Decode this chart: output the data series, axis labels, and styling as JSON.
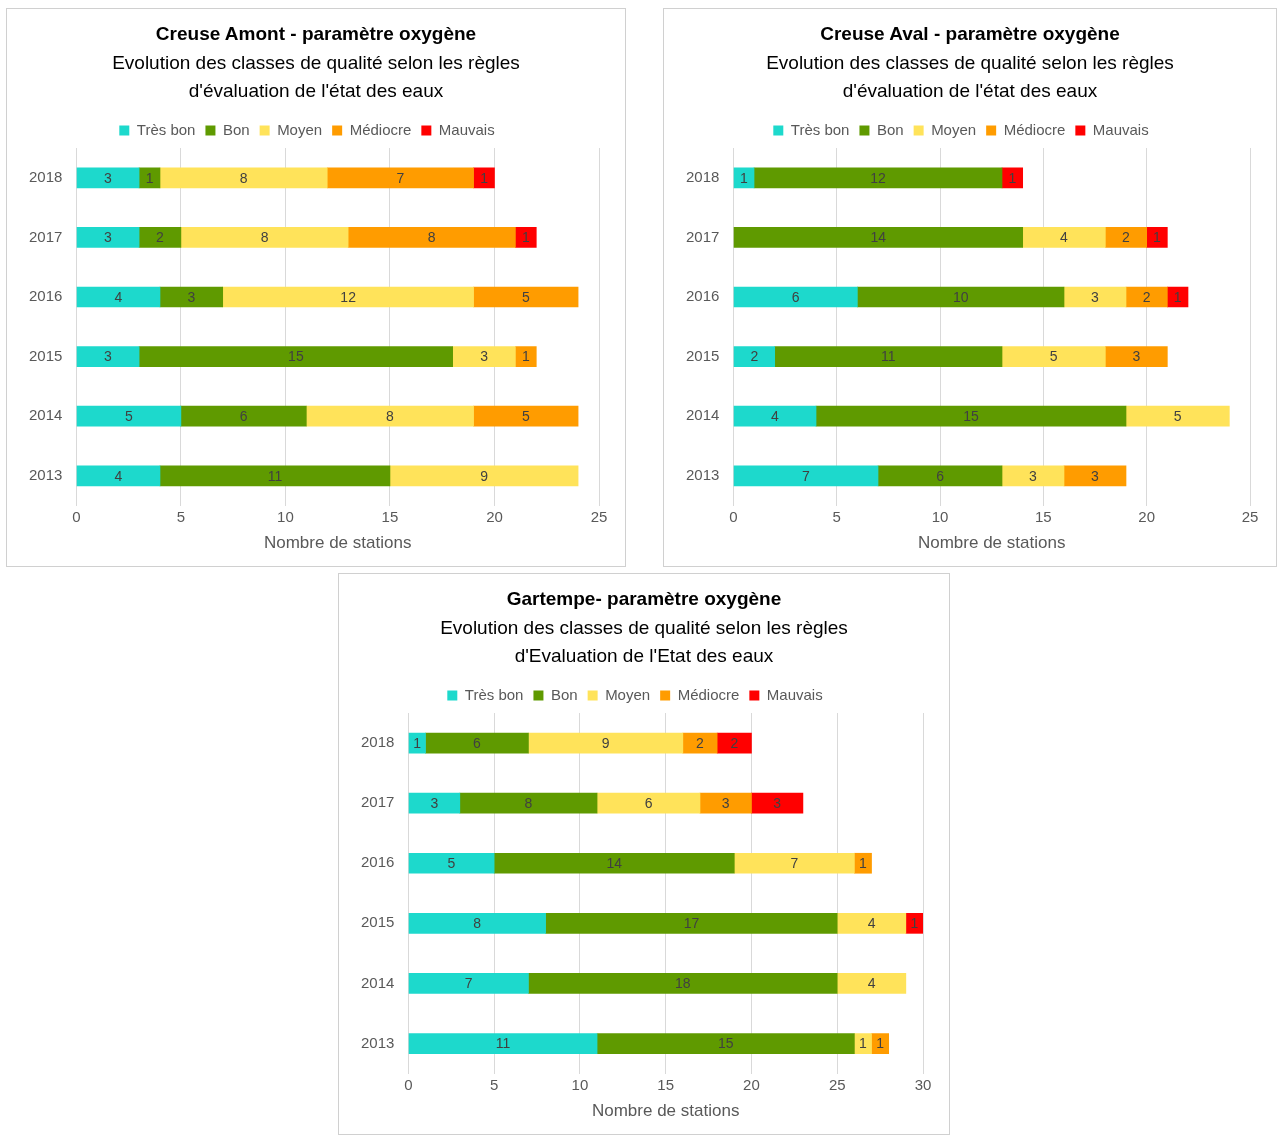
{
  "chart_data": [
    {
      "type": "bar",
      "orientation": "horizontal",
      "stacked": true,
      "title": "Creuse Amont - paramètre oxygène",
      "subtitle": "Evolution des classes de qualité selon les règles d'évaluation de l'état des eaux",
      "xlabel": "Nombre de stations",
      "categories": [
        "2018",
        "2017",
        "2016",
        "2015",
        "2014",
        "2013"
      ],
      "xlim": [
        0,
        25
      ],
      "xticks": [
        0,
        5,
        10,
        15,
        20,
        25
      ],
      "grid": "x",
      "legend": "top",
      "data_labels": true,
      "series": [
        {
          "name": "Très bon",
          "color": "#1dd9cc",
          "values": [
            3,
            3,
            4,
            3,
            5,
            4
          ]
        },
        {
          "name": "Bon",
          "color": "#5f9a00",
          "values": [
            1,
            2,
            3,
            15,
            6,
            11
          ]
        },
        {
          "name": "Moyen",
          "color": "#ffe35a",
          "values": [
            8,
            8,
            12,
            3,
            8,
            9
          ]
        },
        {
          "name": "Médiocre",
          "color": "#ff9c00",
          "values": [
            7,
            8,
            5,
            1,
            5,
            null
          ]
        },
        {
          "name": "Mauvais",
          "color": "#ff0000",
          "values": [
            1,
            1,
            null,
            null,
            null,
            null
          ]
        }
      ]
    },
    {
      "type": "bar",
      "orientation": "horizontal",
      "stacked": true,
      "title": "Creuse Aval - paramètre oxygène",
      "subtitle": "Evolution des classes de qualité selon les règles d'évaluation de l'état des eaux",
      "xlabel": "Nombre de stations",
      "categories": [
        "2018",
        "2017",
        "2016",
        "2015",
        "2014",
        "2013"
      ],
      "xlim": [
        0,
        25
      ],
      "xticks": [
        0,
        5,
        10,
        15,
        20,
        25
      ],
      "grid": "x",
      "legend": "top",
      "data_labels": true,
      "series": [
        {
          "name": "Très bon",
          "color": "#1dd9cc",
          "values": [
            1,
            null,
            6,
            2,
            4,
            7
          ]
        },
        {
          "name": "Bon",
          "color": "#5f9a00",
          "values": [
            12,
            14,
            10,
            11,
            15,
            6
          ]
        },
        {
          "name": "Moyen",
          "color": "#ffe35a",
          "values": [
            null,
            4,
            3,
            5,
            5,
            3
          ]
        },
        {
          "name": "Médiocre",
          "color": "#ff9c00",
          "values": [
            null,
            2,
            2,
            3,
            null,
            3
          ]
        },
        {
          "name": "Mauvais",
          "color": "#ff0000",
          "values": [
            1,
            1,
            1,
            null,
            null,
            null
          ]
        }
      ]
    },
    {
      "type": "bar",
      "orientation": "horizontal",
      "stacked": true,
      "title": "Gartempe- paramètre oxygène",
      "subtitle": "Evolution des classes de qualité selon les règles d'Evaluation de l'Etat des eaux",
      "xlabel": "Nombre de stations",
      "categories": [
        "2018",
        "2017",
        "2016",
        "2015",
        "2014",
        "2013"
      ],
      "xlim": [
        0,
        30
      ],
      "xticks": [
        0,
        5,
        10,
        15,
        20,
        25,
        30
      ],
      "grid": "x",
      "legend": "top",
      "data_labels": true,
      "series": [
        {
          "name": "Très bon",
          "color": "#1dd9cc",
          "values": [
            1,
            3,
            5,
            8,
            7,
            11
          ]
        },
        {
          "name": "Bon",
          "color": "#5f9a00",
          "values": [
            6,
            8,
            14,
            17,
            18,
            15
          ]
        },
        {
          "name": "Moyen",
          "color": "#ffe35a",
          "values": [
            9,
            6,
            7,
            4,
            4,
            1
          ]
        },
        {
          "name": "Médiocre",
          "color": "#ff9c00",
          "values": [
            2,
            3,
            1,
            null,
            null,
            1
          ]
        },
        {
          "name": "Mauvais",
          "color": "#ff0000",
          "values": [
            2,
            3,
            null,
            1,
            null,
            null
          ]
        }
      ]
    }
  ]
}
